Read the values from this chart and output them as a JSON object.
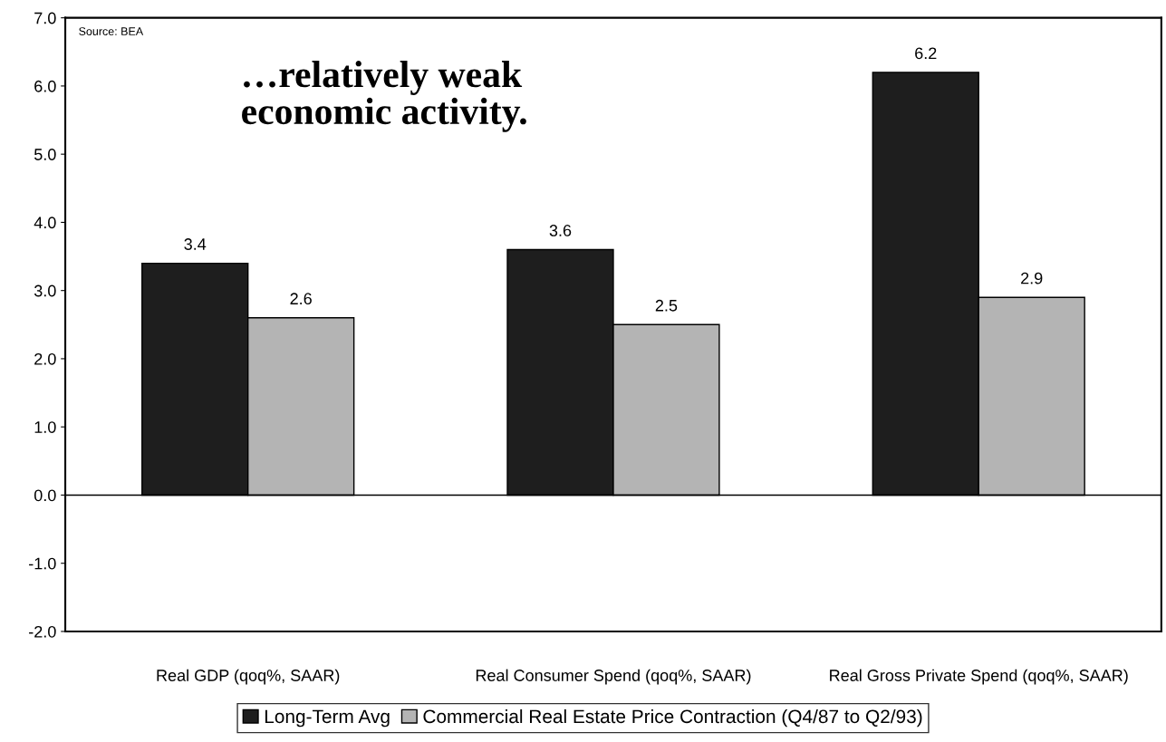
{
  "chart_data": {
    "type": "bar",
    "title": "…relatively weak\neconomic activity.",
    "categories": [
      "Real GDP (qoq%, SAAR)",
      "Real Consumer Spend (qoq%, SAAR)",
      "Real Gross Private Spend (qoq%, SAAR)"
    ],
    "series": [
      {
        "name": "Long-Term Avg",
        "color": "#1e1e1e",
        "values": [
          3.4,
          3.6,
          6.2
        ]
      },
      {
        "name": "Commercial Real Estate Price Contraction (Q4/87 to Q2/93)",
        "color": "#b4b4b4",
        "values": [
          2.6,
          2.5,
          2.9
        ]
      }
    ],
    "ylim": [
      -2.0,
      7.0
    ],
    "yticks": [
      {
        "value": -2,
        "label": "-2.0"
      },
      {
        "value": -1,
        "label": "-1.0"
      },
      {
        "value": 0,
        "label": "0.0"
      },
      {
        "value": 1,
        "label": "1.0"
      },
      {
        "value": 2,
        "label": "2.0"
      },
      {
        "value": 3,
        "label": "3.0"
      },
      {
        "value": 4,
        "label": "4.0"
      },
      {
        "value": 5,
        "label": "5.0"
      },
      {
        "value": 6,
        "label": "6.0"
      },
      {
        "value": 7,
        "label": "7.0"
      }
    ],
    "ref_lines": [
      {
        "axis": "y",
        "value": 0,
        "color": "#000000"
      }
    ],
    "data_labels": true,
    "grid": false,
    "legend": "bottom",
    "annotations": [
      "Source: BEA"
    ]
  }
}
